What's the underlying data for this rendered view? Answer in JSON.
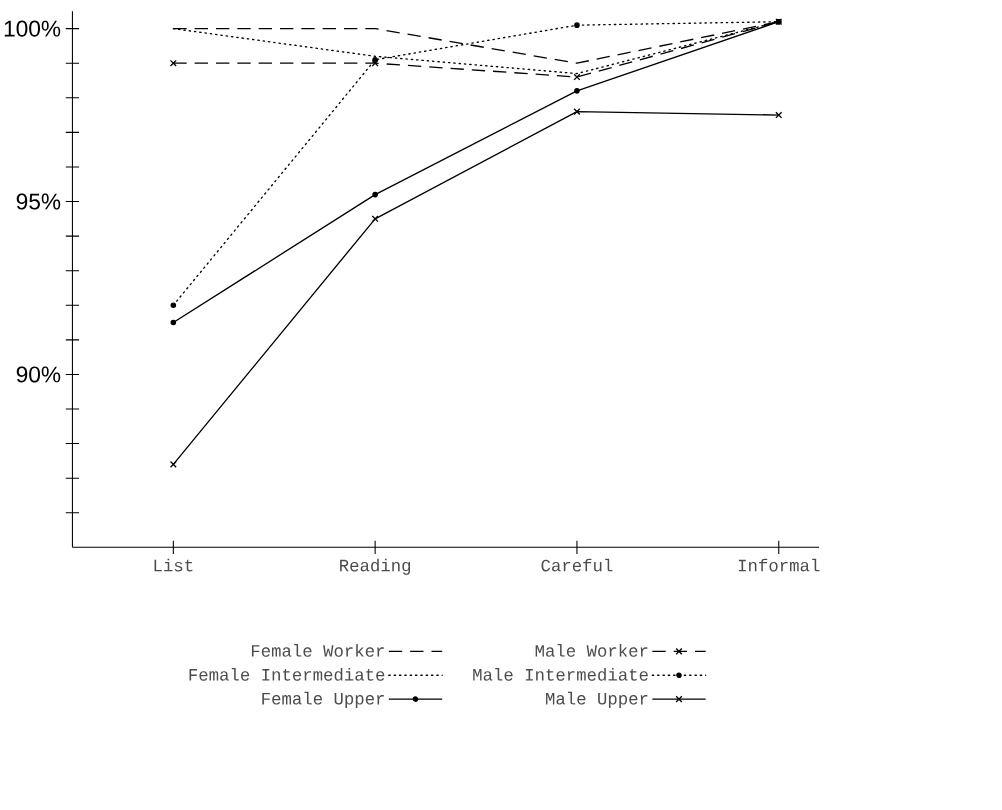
{
  "chart_data": {
    "type": "line",
    "categories": [
      "List",
      "Reading",
      "Careful",
      "Informal"
    ],
    "series": [
      {
        "name": "Female Worker",
        "color": "#000000",
        "line_style": "dashed",
        "marker": "none",
        "values": [
          100,
          100,
          99,
          100.2
        ]
      },
      {
        "name": "Female Intermediate",
        "color": "#000000",
        "line_style": "dotted",
        "marker": "none",
        "values": [
          100,
          99.2,
          98.7,
          100.2
        ]
      },
      {
        "name": "Female Upper",
        "color": "#000000",
        "line_style": "solid",
        "marker": "circle",
        "values": [
          91.5,
          95.2,
          98.2,
          100.2
        ]
      },
      {
        "name": "Male Worker",
        "color": "#000000",
        "line_style": "dashed",
        "marker": "cross",
        "values": [
          99,
          99,
          98.6,
          100.2
        ]
      },
      {
        "name": "Male Intermediate",
        "color": "#000000",
        "line_style": "dotted",
        "marker": "circle",
        "values": [
          92,
          99.1,
          100.1,
          100.2
        ]
      },
      {
        "name": "Male Upper",
        "color": "#000000",
        "line_style": "solid",
        "marker": "cross",
        "values": [
          87.4,
          94.5,
          97.6,
          97.5
        ]
      }
    ],
    "ylim": [
      85,
      100.5
    ],
    "yticks": [
      {
        "value": 86,
        "label": null
      },
      {
        "value": 87,
        "label": null
      },
      {
        "value": 88,
        "label": null
      },
      {
        "value": 89,
        "label": null
      },
      {
        "value": 90,
        "label": "90%"
      },
      {
        "value": 91,
        "label": null
      },
      {
        "value": 92,
        "label": null
      },
      {
        "value": 93,
        "label": null
      },
      {
        "value": 94,
        "label": null
      },
      {
        "value": 95,
        "label": "95%"
      },
      {
        "value": 96,
        "label": null
      },
      {
        "value": 97,
        "label": null
      },
      {
        "value": 98,
        "label": null
      },
      {
        "value": 99,
        "label": null
      },
      {
        "value": 100,
        "label": "100%"
      }
    ],
    "legend": "bottom",
    "grid": false
  }
}
